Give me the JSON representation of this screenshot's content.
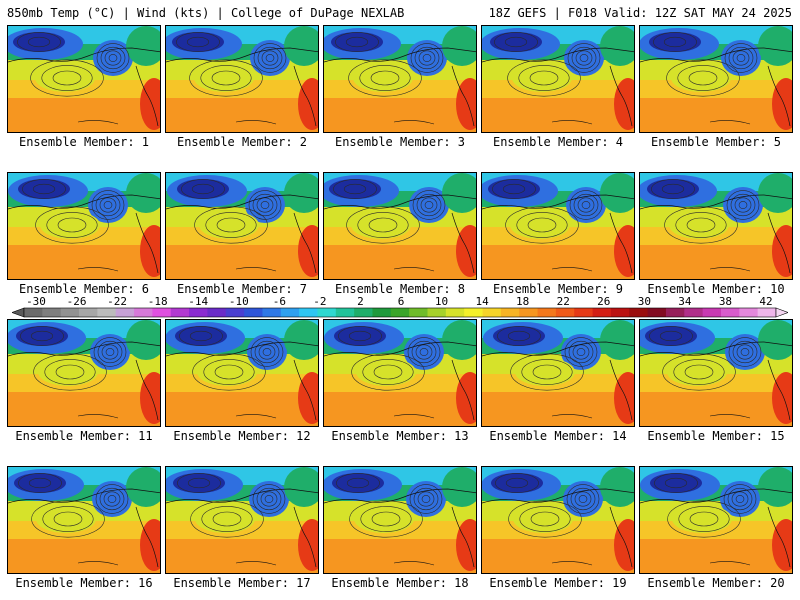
{
  "header": {
    "left_title": "850mb Temp (°C) | Wind (kts) | College of DuPage NEXLAB",
    "right_title": "18Z GEFS | F018 Valid: 12Z SAT MAY 24 2025"
  },
  "members": [
    {
      "label": "Ensemble Member: 1"
    },
    {
      "label": "Ensemble Member: 2"
    },
    {
      "label": "Ensemble Member: 3"
    },
    {
      "label": "Ensemble Member: 4"
    },
    {
      "label": "Ensemble Member: 5"
    },
    {
      "label": "Ensemble Member: 6"
    },
    {
      "label": "Ensemble Member: 7"
    },
    {
      "label": "Ensemble Member: 8"
    },
    {
      "label": "Ensemble Member: 9"
    },
    {
      "label": "Ensemble Member: 10"
    },
    {
      "label": "Ensemble Member: 11"
    },
    {
      "label": "Ensemble Member: 12"
    },
    {
      "label": "Ensemble Member: 13"
    },
    {
      "label": "Ensemble Member: 14"
    },
    {
      "label": "Ensemble Member: 15"
    },
    {
      "label": "Ensemble Member: 16"
    },
    {
      "label": "Ensemble Member: 17"
    },
    {
      "label": "Ensemble Member: 18"
    },
    {
      "label": "Ensemble Member: 19"
    },
    {
      "label": "Ensemble Member: 20"
    }
  ],
  "colorbar": {
    "tick_labels": [
      "-30",
      "-26",
      "-22",
      "-18",
      "-14",
      "-10",
      "-6",
      "-2",
      "2",
      "6",
      "10",
      "14",
      "18",
      "22",
      "26",
      "30",
      "34",
      "38",
      "42"
    ],
    "colors": [
      "#6b6b6b",
      "#7e7e7e",
      "#929292",
      "#a7a7a7",
      "#bcbcbc",
      "#c7a1d6",
      "#d67ad9",
      "#e050e0",
      "#b23ad1",
      "#8a2bd0",
      "#6a2cc8",
      "#4a3fd0",
      "#2f55d8",
      "#2f78e6",
      "#2ea0ef",
      "#2fc6f2",
      "#2fd8d0",
      "#22c39a",
      "#1fae6a",
      "#1f9a3c",
      "#3aa52a",
      "#6fbc2a",
      "#a6d12a",
      "#d6e22a",
      "#f4f02a",
      "#f6d428",
      "#f7b424",
      "#f69620",
      "#f4781c",
      "#f05a18",
      "#e63a16",
      "#d41e14",
      "#bb1212",
      "#9a0e0e",
      "#820c22",
      "#961f5a",
      "#b02e8a",
      "#c83ab2",
      "#d85ccc",
      "#e488dc",
      "#efb5ea"
    ]
  },
  "map_colors": {
    "very_cold": "#1c2c9e",
    "cold": "#2f6fe0",
    "cool": "#2fc6e6",
    "mild": "#1fae6a",
    "warm": "#d6e22a",
    "warmer": "#f6c528",
    "hot": "#f69620",
    "very_hot": "#e63a16"
  }
}
